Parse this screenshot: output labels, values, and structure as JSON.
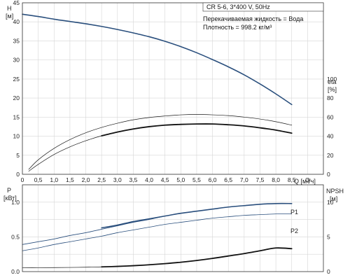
{
  "chart_data": [
    {
      "type": "line",
      "title": "CR 5-6, 3*400 V, 50Hz",
      "annotations": [
        "Перекачиваемая жидкость = Вода",
        "Плотность = 998.2 кг/м³"
      ],
      "xlabel": "Q [м³/ч]",
      "ylabel": "H",
      "ylabel_unit": "[м]",
      "y2label": "eta",
      "y2label_unit": "[%]",
      "xlim": [
        0,
        9.5
      ],
      "ylim": [
        0,
        45
      ],
      "y2lim": [
        0,
        180
      ],
      "grid": true,
      "x_ticks": [
        "0",
        "0,5",
        "1,0",
        "1,5",
        "2,0",
        "2,5",
        "3,0",
        "3,5",
        "4,0",
        "4,5",
        "5,0",
        "5,5",
        "6,0",
        "6,5",
        "7,0",
        "7,5",
        "8,0",
        "8,5",
        "Q"
      ],
      "y_ticks": [
        "0",
        "5",
        "10",
        "15",
        "20",
        "25",
        "30",
        "35",
        "40",
        "45"
      ],
      "y2_ticks": [
        "0",
        "20",
        "40",
        "60",
        "80",
        "100"
      ],
      "series": [
        {
          "axis": "y",
          "color": "#2a4f7d",
          "width": 1.6,
          "x": [
            0,
            0.5,
            1,
            1.5,
            2,
            2.5,
            3,
            3.5,
            4,
            4.5,
            5,
            5.5,
            6,
            6.5,
            7,
            7.5,
            8,
            8.5
          ],
          "y": [
            42,
            41.4,
            40.7,
            40.1,
            39.5,
            38.8,
            38,
            37.1,
            36.1,
            34.9,
            33.5,
            31.9,
            30.1,
            28.2,
            26.1,
            23.7,
            21.1,
            18.3
          ]
        },
        {
          "axis": "y",
          "color": "#1a1a1a",
          "width": 0.7,
          "x": [
            0.2,
            0.5,
            1,
            1.5,
            2,
            2.5,
            3,
            3.5,
            4,
            4.5,
            5,
            5.5,
            6,
            6.5,
            7,
            7.5,
            8,
            8.5
          ],
          "y": [
            1.3,
            3.8,
            6.8,
            9.1,
            10.9,
            12.3,
            13.4,
            14.3,
            14.9,
            15.3,
            15.6,
            15.7,
            15.6,
            15.4,
            15,
            14.5,
            13.8,
            12.9
          ]
        },
        {
          "axis": "y",
          "color": "#1a1a1a",
          "width": 0.7,
          "x": [
            0.2,
            0.5,
            1,
            1.5,
            2,
            2.5,
            3,
            3.5,
            4,
            4.5,
            5,
            5.5,
            6,
            6.5,
            7,
            7.5,
            8,
            8.5
          ],
          "y": [
            0.8,
            2.6,
            5.2,
            7.2,
            8.8,
            10.1,
            11.1,
            11.9,
            12.5,
            12.9,
            13.1,
            13.2,
            13.2,
            13,
            12.7,
            12.2,
            11.6,
            10.8
          ]
        },
        {
          "axis": "y",
          "color": "#111111",
          "width": 1.8,
          "x": [
            2.5,
            3,
            3.5,
            4,
            4.5,
            5,
            5.5,
            6,
            6.5,
            7,
            7.5,
            8,
            8.5
          ],
          "y": [
            10.1,
            11.1,
            11.9,
            12.5,
            12.9,
            13.1,
            13.2,
            13.2,
            13,
            12.7,
            12.2,
            11.6,
            10.8
          ]
        }
      ]
    },
    {
      "type": "line",
      "ylabel": "P",
      "ylabel_unit": "[кВт]",
      "y2label": "NPSH",
      "y2label_unit": "[м]",
      "xlim": [
        0,
        9.5
      ],
      "ylim": [
        0,
        1.25
      ],
      "y2lim": [
        0,
        12.5
      ],
      "grid": true,
      "y_ticks": [
        "0.0",
        "0.5",
        "1.0"
      ],
      "y2_ticks": [
        "0",
        "5",
        "10"
      ],
      "series": [
        {
          "name": "P1",
          "axis": "y",
          "color": "#2a4f7d",
          "width": 0.9,
          "x": [
            0,
            0.5,
            1,
            1.5,
            2,
            2.5,
            3,
            3.5,
            4,
            4.5,
            5,
            5.5,
            6,
            6.5,
            7,
            7.5,
            8,
            8.5
          ],
          "y": [
            0.39,
            0.43,
            0.47,
            0.52,
            0.56,
            0.61,
            0.66,
            0.71,
            0.75,
            0.8,
            0.84,
            0.87,
            0.9,
            0.93,
            0.95,
            0.97,
            0.98,
            0.98
          ]
        },
        {
          "name": "P2",
          "axis": "y",
          "color": "#2a4f7d",
          "width": 0.8,
          "x": [
            0,
            0.5,
            1,
            1.5,
            2,
            2.5,
            3,
            3.5,
            4,
            4.5,
            5,
            5.5,
            6,
            6.5,
            7,
            7.5,
            8,
            8.5
          ],
          "y": [
            0.3,
            0.34,
            0.39,
            0.43,
            0.47,
            0.51,
            0.56,
            0.6,
            0.64,
            0.68,
            0.71,
            0.74,
            0.77,
            0.79,
            0.81,
            0.82,
            0.83,
            0.83
          ]
        },
        {
          "axis": "y",
          "color": "#2a4f7d",
          "width": 1.6,
          "x": [
            2.5,
            3,
            3.5,
            4,
            4.5,
            5,
            5.5,
            6,
            6.5,
            7,
            7.5,
            8,
            8.5
          ],
          "y": [
            0.63,
            0.67,
            0.72,
            0.76,
            0.8,
            0.84,
            0.87,
            0.9,
            0.93,
            0.95,
            0.97,
            0.98,
            0.98
          ]
        },
        {
          "axis": "y2",
          "color": "#111111",
          "width": 0.7,
          "x": [
            0,
            0.5,
            1,
            1.5,
            2,
            2.5
          ],
          "y": [
            0.55,
            0.56,
            0.58,
            0.6,
            0.63,
            0.68
          ]
        },
        {
          "axis": "y2",
          "color": "#111111",
          "width": 1.8,
          "x": [
            2.5,
            3,
            3.5,
            4,
            4.5,
            5,
            5.5,
            6,
            6.5,
            7,
            7.5,
            8,
            8.5
          ],
          "y": [
            0.68,
            0.75,
            0.85,
            0.98,
            1.15,
            1.35,
            1.6,
            1.9,
            2.25,
            2.6,
            3,
            3.4,
            3.3
          ]
        }
      ]
    }
  ]
}
